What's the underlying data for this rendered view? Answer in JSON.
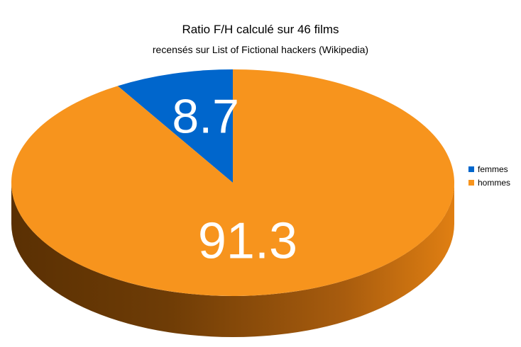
{
  "chart_data": {
    "type": "pie",
    "title": "Ratio F/H calculé sur 46 films",
    "subtitle": "recensés sur List of Fictional hackers (Wikipedia)",
    "categories": [
      "femmes",
      "hommes"
    ],
    "values": [
      8.7,
      91.3
    ],
    "data_labels": [
      "8.7",
      "91.3"
    ],
    "colors": [
      "#0066cc",
      "#f7941d"
    ],
    "side_colors": [
      "#06386e",
      "#6b3a06"
    ],
    "three_d": true,
    "legend_position": "right"
  }
}
